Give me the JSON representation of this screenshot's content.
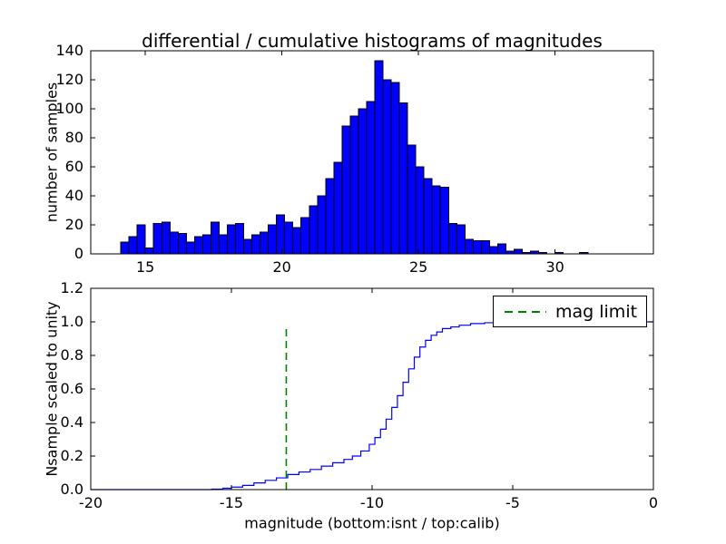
{
  "figure": {
    "background": "#ffffff"
  },
  "chart_data": [
    {
      "type": "bar",
      "subtype": "histogram",
      "title": "differential / cumulative histograms of magnitudes",
      "xlabel": "",
      "ylabel": "number of samples",
      "bar_color": "#0000ff",
      "bar_edge_color": "#000000",
      "bin_start": 14.1,
      "bin_width": 0.3,
      "values": [
        8,
        12,
        20,
        4,
        21,
        22,
        15,
        14,
        8,
        12,
        13,
        22,
        13,
        20,
        21,
        10,
        13,
        15,
        20,
        27,
        22,
        18,
        25,
        33,
        40,
        52,
        63,
        88,
        95,
        100,
        105,
        133,
        120,
        118,
        104,
        75,
        60,
        52,
        47,
        46,
        21,
        20,
        10,
        9,
        9,
        5,
        7,
        2,
        3,
        1,
        2,
        1,
        0,
        1,
        0,
        0,
        1,
        0
      ],
      "xlim": [
        13.0,
        33.6
      ],
      "ylim": [
        0,
        140
      ],
      "xticks": [
        15,
        20,
        25,
        30
      ],
      "xticklabels": [
        "15",
        "20",
        "25",
        "30"
      ],
      "yticks": [
        0,
        20,
        40,
        60,
        80,
        100,
        120,
        140
      ],
      "yticklabels": [
        "0",
        "20",
        "40",
        "60",
        "80",
        "100",
        "120",
        "140"
      ],
      "grid": false
    },
    {
      "type": "line",
      "subtype": "cumulative-step",
      "title": "",
      "xlabel": "magnitude (bottom:isnt / top:calib)",
      "ylabel": "Nsample scaled to unity",
      "line_color": "#0000ff",
      "x": [
        -20,
        -15.7,
        -15.3,
        -15.0,
        -14.6,
        -14.2,
        -13.8,
        -13.4,
        -13.0,
        -12.6,
        -12.2,
        -11.8,
        -11.4,
        -11.0,
        -10.7,
        -10.4,
        -10.1,
        -9.9,
        -9.7,
        -9.5,
        -9.3,
        -9.1,
        -8.9,
        -8.7,
        -8.5,
        -8.3,
        -8.1,
        -7.9,
        -7.7,
        -7.5,
        -7.2,
        -6.9,
        -6.5,
        -6.0,
        -5.5,
        0
      ],
      "y": [
        0,
        0.003,
        0.008,
        0.015,
        0.025,
        0.04,
        0.055,
        0.07,
        0.09,
        0.105,
        0.12,
        0.14,
        0.16,
        0.18,
        0.2,
        0.23,
        0.27,
        0.31,
        0.36,
        0.42,
        0.49,
        0.56,
        0.64,
        0.72,
        0.79,
        0.85,
        0.89,
        0.92,
        0.94,
        0.96,
        0.97,
        0.98,
        0.99,
        0.995,
        1.0,
        1.0
      ],
      "xlim": [
        -20,
        0
      ],
      "ylim": [
        0,
        1.2
      ],
      "xticks": [
        -20,
        -15,
        -10,
        -5,
        0
      ],
      "xticklabels": [
        "-20",
        "-15",
        "-10",
        "-5",
        "0"
      ],
      "yticks": [
        0.0,
        0.2,
        0.4,
        0.6,
        0.8,
        1.0,
        1.2
      ],
      "yticklabels": [
        "0.0",
        "0.2",
        "0.4",
        "0.6",
        "0.8",
        "1.0",
        "1.2"
      ],
      "grid": false,
      "mag_limit": {
        "x": -13.05,
        "y_bottom": 0,
        "y_top": 0.97,
        "color": "#008000",
        "style": "dashed"
      },
      "legend": {
        "position": "upper right",
        "entries": [
          {
            "label": "mag limit",
            "color": "#008000",
            "dash": true
          }
        ]
      }
    }
  ]
}
